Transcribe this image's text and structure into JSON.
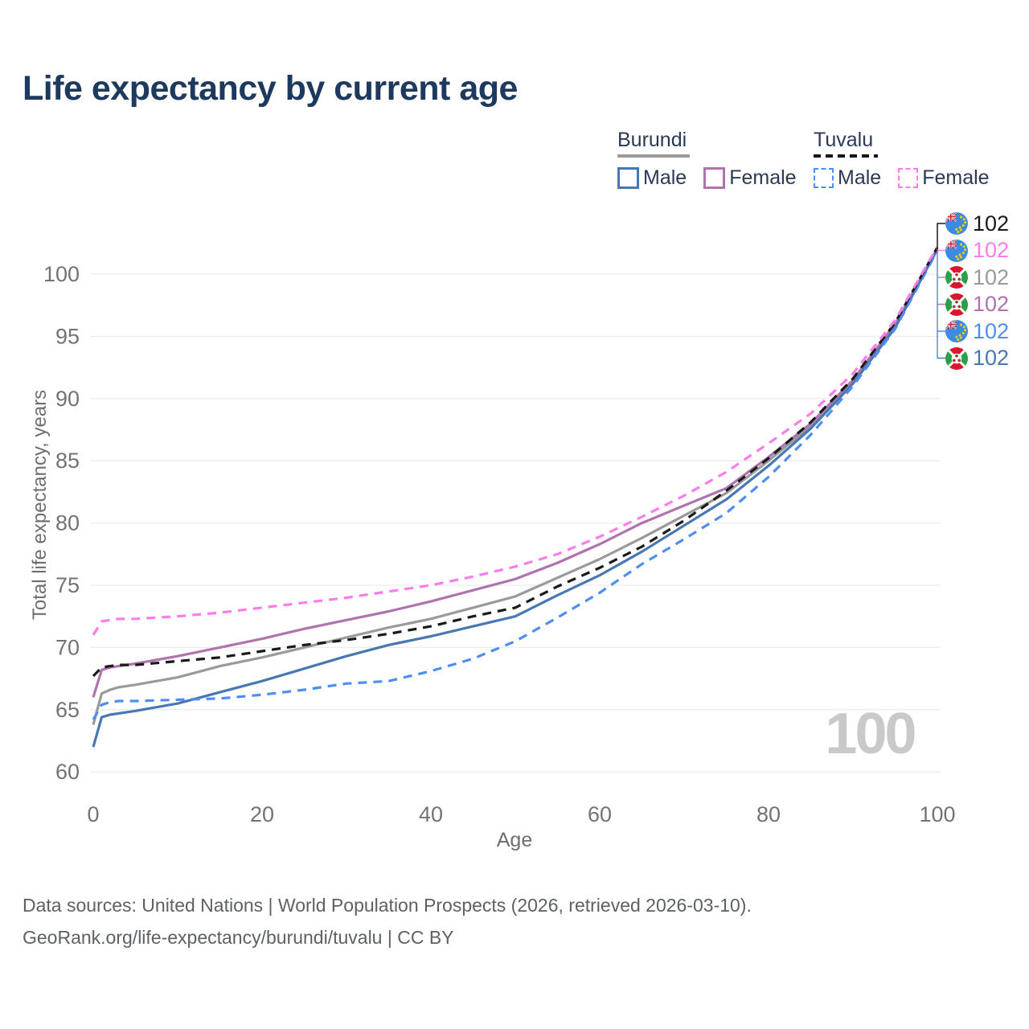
{
  "title": "Life expectancy by current age",
  "legend": {
    "groups": [
      {
        "country": "Burundi",
        "line_style": "solid",
        "underline_color": "#9a9a9a",
        "items": [
          {
            "label": "Male",
            "color": "#4878b4"
          },
          {
            "label": "Female",
            "color": "#b173ae"
          }
        ]
      },
      {
        "country": "Tuvalu",
        "line_style": "dashed",
        "underline_color": "#161616",
        "items": [
          {
            "label": "Male",
            "color": "#4e8ef0"
          },
          {
            "label": "Female",
            "color": "#fb7deb"
          }
        ]
      }
    ]
  },
  "side_labels": [
    {
      "flag": "tuvalu",
      "value": "102",
      "color": "#1a1a1a",
      "series": "Tuvalu"
    },
    {
      "flag": "tuvalu",
      "value": "102",
      "color": "#fb7deb",
      "series": "Tuvalu Female"
    },
    {
      "flag": "burundi",
      "value": "102",
      "color": "#9a9a9a",
      "series": "Burundi"
    },
    {
      "flag": "burundi",
      "value": "102",
      "color": "#b173ae",
      "series": "Burundi Female"
    },
    {
      "flag": "tuvalu",
      "value": "102",
      "color": "#4e8ef0",
      "series": "Tuvalu Male"
    },
    {
      "flag": "burundi",
      "value": "102",
      "color": "#4878b4",
      "series": "Burundi Male"
    }
  ],
  "watermark": "100",
  "footer": {
    "line1": "Data sources: United Nations | World Population Prospects (2026, retrieved 2026-03-10).",
    "line2": "GeoRank.org/life-expectancy/burundi/tuvalu | CC BY"
  },
  "chart_data": {
    "type": "line",
    "title": "Life expectancy by current age",
    "xlabel": "Age",
    "ylabel": "Total life expectancy, years",
    "xlim": [
      0,
      100
    ],
    "ylim": [
      60,
      103.5
    ],
    "xticks": [
      0,
      20,
      40,
      60,
      80,
      100
    ],
    "yticks": [
      60,
      65,
      70,
      75,
      80,
      85,
      90,
      95,
      100
    ],
    "grid": "horizontal",
    "legend_position": "top-right",
    "x": [
      0,
      1,
      2,
      3,
      5,
      10,
      15,
      20,
      25,
      30,
      35,
      40,
      45,
      50,
      55,
      60,
      65,
      70,
      75,
      80,
      85,
      90,
      95,
      100
    ],
    "series": [
      {
        "name": "Burundi",
        "color": "#9a9a9a",
        "dashed": false,
        "values": [
          63.8,
          66.3,
          66.6,
          66.8,
          67.0,
          67.6,
          68.5,
          69.2,
          70.0,
          70.8,
          71.6,
          72.3,
          73.2,
          74.1,
          75.6,
          77.1,
          78.8,
          80.6,
          82.4,
          85.0,
          87.8,
          91.3,
          95.8,
          102.0
        ]
      },
      {
        "name": "Burundi Female",
        "color": "#b173ae",
        "dashed": false,
        "values": [
          66.0,
          68.2,
          68.4,
          68.5,
          68.7,
          69.3,
          70.0,
          70.7,
          71.5,
          72.2,
          72.9,
          73.7,
          74.6,
          75.5,
          76.8,
          78.3,
          80.0,
          81.4,
          82.8,
          85.3,
          88.0,
          91.5,
          96.0,
          102.05
        ]
      },
      {
        "name": "Burundi Male",
        "color": "#4878b4",
        "dashed": false,
        "values": [
          62.0,
          64.4,
          64.6,
          64.7,
          64.9,
          65.5,
          66.4,
          67.3,
          68.3,
          69.3,
          70.2,
          70.9,
          71.7,
          72.5,
          74.2,
          75.8,
          77.7,
          79.8,
          81.9,
          84.6,
          87.6,
          91.2,
          95.7,
          102.0
        ]
      },
      {
        "name": "Tuvalu Male",
        "color": "#4e8ef0",
        "dashed": true,
        "values": [
          64.2,
          65.4,
          65.6,
          65.7,
          65.7,
          65.8,
          65.9,
          66.2,
          66.6,
          67.1,
          67.3,
          68.1,
          69.1,
          70.5,
          72.4,
          74.4,
          76.7,
          78.7,
          80.8,
          83.7,
          87.1,
          91.0,
          95.6,
          101.9
        ]
      },
      {
        "name": "Tuvalu",
        "color": "#1a1a1a",
        "dashed": true,
        "values": [
          67.7,
          68.4,
          68.5,
          68.6,
          68.6,
          68.9,
          69.2,
          69.7,
          70.2,
          70.6,
          71.1,
          71.7,
          72.5,
          73.2,
          74.9,
          76.4,
          78.1,
          80.2,
          82.6,
          85.2,
          88.1,
          91.6,
          96.1,
          102.15
        ]
      },
      {
        "name": "Tuvalu Female",
        "color": "#fb7deb",
        "dashed": true,
        "values": [
          71.0,
          72.1,
          72.2,
          72.3,
          72.3,
          72.5,
          72.8,
          73.2,
          73.6,
          74.0,
          74.5,
          75.0,
          75.7,
          76.5,
          77.5,
          78.9,
          80.5,
          82.2,
          84.1,
          86.4,
          88.8,
          92.0,
          96.3,
          102.2
        ]
      }
    ]
  }
}
